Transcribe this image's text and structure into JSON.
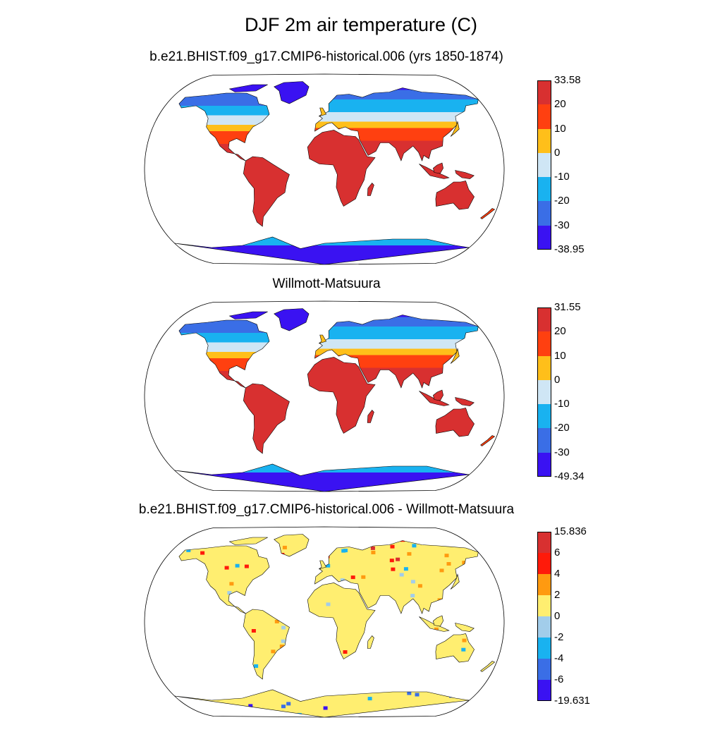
{
  "title": "DJF 2m air temperature (C)",
  "panels": [
    {
      "title": "b.e21.BHIST.f09_g17.CMIP6-historical.006 (yrs 1850-1874)",
      "colors": [
        "#3a12f2",
        "#3a6ee6",
        "#19b2f0",
        "#cfe6f5",
        "#ffbf1a",
        "#ff4010",
        "#d83030"
      ],
      "labels": [
        "-38.95",
        "-30",
        "-20",
        "-10",
        "0",
        "10",
        "20",
        "33.58"
      ]
    },
    {
      "title": "Willmott-Matsuura",
      "colors": [
        "#3a12f2",
        "#3a6ee6",
        "#19b2f0",
        "#cfe6f5",
        "#ffbf1a",
        "#ff4010",
        "#d83030"
      ],
      "labels": [
        "-49.34",
        "-30",
        "-20",
        "-10",
        "0",
        "10",
        "20",
        "31.55"
      ]
    },
    {
      "title": "b.e21.BHIST.f09_g17.CMIP6-historical.006 - Willmott-Matsuura",
      "colors": [
        "#3a12f2",
        "#3a6ee6",
        "#19b2f0",
        "#a2cdea",
        "#ffee70",
        "#ff9a10",
        "#ff1a0a",
        "#d83030"
      ],
      "labels": [
        "-19.631",
        "-6",
        "-4",
        "-2",
        "0",
        "2",
        "4",
        "6",
        "15.836"
      ]
    }
  ]
}
